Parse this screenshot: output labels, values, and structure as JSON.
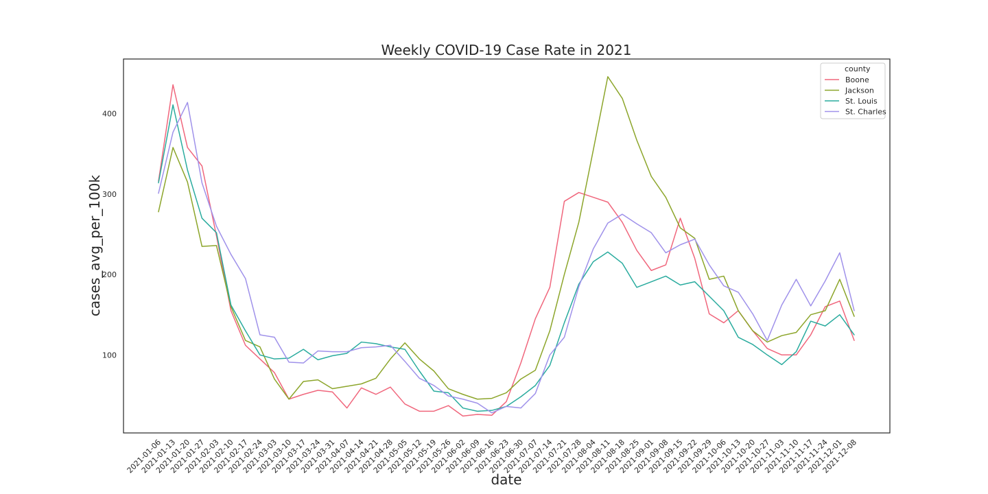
{
  "chart_data": {
    "type": "line",
    "title": "Weekly COVID-19 Case Rate in 2021",
    "xlabel": "date",
    "ylabel": "cases_avg_per_100k",
    "ylim": [
      3,
      468
    ],
    "yticks": [
      100,
      200,
      300,
      400
    ],
    "grid": false,
    "legend_position": "top-right",
    "legend_title": "county",
    "categories": [
      "2021-01-06",
      "2021-01-13",
      "2021-01-20",
      "2021-01-27",
      "2021-02-03",
      "2021-02-10",
      "2021-02-17",
      "2021-02-24",
      "2021-03-03",
      "2021-03-10",
      "2021-03-17",
      "2021-03-24",
      "2021-03-31",
      "2021-04-07",
      "2021-04-14",
      "2021-04-21",
      "2021-04-28",
      "2021-05-05",
      "2021-05-12",
      "2021-05-19",
      "2021-05-26",
      "2021-06-02",
      "2021-06-09",
      "2021-06-16",
      "2021-06-23",
      "2021-06-30",
      "2021-07-07",
      "2021-07-14",
      "2021-07-21",
      "2021-07-28",
      "2021-08-04",
      "2021-08-11",
      "2021-08-18",
      "2021-08-25",
      "2021-09-01",
      "2021-09-08",
      "2021-09-15",
      "2021-09-22",
      "2021-09-29",
      "2021-10-06",
      "2021-10-13",
      "2021-10-20",
      "2021-10-27",
      "2021-11-03",
      "2021-11-10",
      "2021-11-17",
      "2021-11-24",
      "2021-12-01",
      "2021-12-08"
    ],
    "series": [
      {
        "name": "Boone",
        "color": "#f0667c",
        "values": [
          316,
          436,
          358,
          335,
          248,
          155,
          112,
          95,
          78,
          45,
          51,
          56,
          54,
          34,
          59,
          51,
          60,
          39,
          30,
          30,
          37,
          24,
          26,
          25,
          42,
          90,
          145,
          184,
          291,
          302,
          296,
          290,
          265,
          230,
          205,
          212,
          270,
          220,
          151,
          140,
          155,
          130,
          108,
          100,
          100,
          125,
          160,
          167,
          118
        ]
      },
      {
        "name": "Jackson",
        "color": "#8ca52a",
        "values": [
          278,
          358,
          315,
          235,
          236,
          160,
          118,
          110,
          70,
          45,
          67,
          69,
          58,
          61,
          64,
          71,
          95,
          115,
          95,
          80,
          58,
          51,
          45,
          46,
          53,
          70,
          81,
          130,
          200,
          265,
          355,
          446,
          419,
          367,
          322,
          296,
          258,
          245,
          194,
          198,
          155,
          130,
          116,
          124,
          128,
          150,
          155,
          194,
          148
        ]
      },
      {
        "name": "St. Louis",
        "color": "#29ab9e",
        "values": [
          314,
          411,
          330,
          270,
          252,
          162,
          130,
          100,
          95,
          96,
          107,
          94,
          99,
          102,
          116,
          114,
          110,
          107,
          80,
          55,
          53,
          34,
          30,
          31,
          36,
          48,
          62,
          87,
          140,
          188,
          216,
          228,
          214,
          184,
          191,
          198,
          187,
          191,
          173,
          155,
          122,
          113,
          100,
          88,
          104,
          142,
          136,
          150,
          125
        ]
      },
      {
        "name": "St. Charles",
        "color": "#9f91ea",
        "values": [
          301,
          377,
          414,
          314,
          260,
          225,
          195,
          125,
          122,
          91,
          90,
          105,
          104,
          104,
          109,
          110,
          112,
          92,
          71,
          62,
          49,
          45,
          40,
          28,
          36,
          34,
          52,
          100,
          122,
          185,
          232,
          264,
          275,
          263,
          252,
          227,
          237,
          244,
          212,
          186,
          178,
          151,
          118,
          162,
          194,
          161,
          192,
          227,
          155
        ]
      }
    ]
  }
}
